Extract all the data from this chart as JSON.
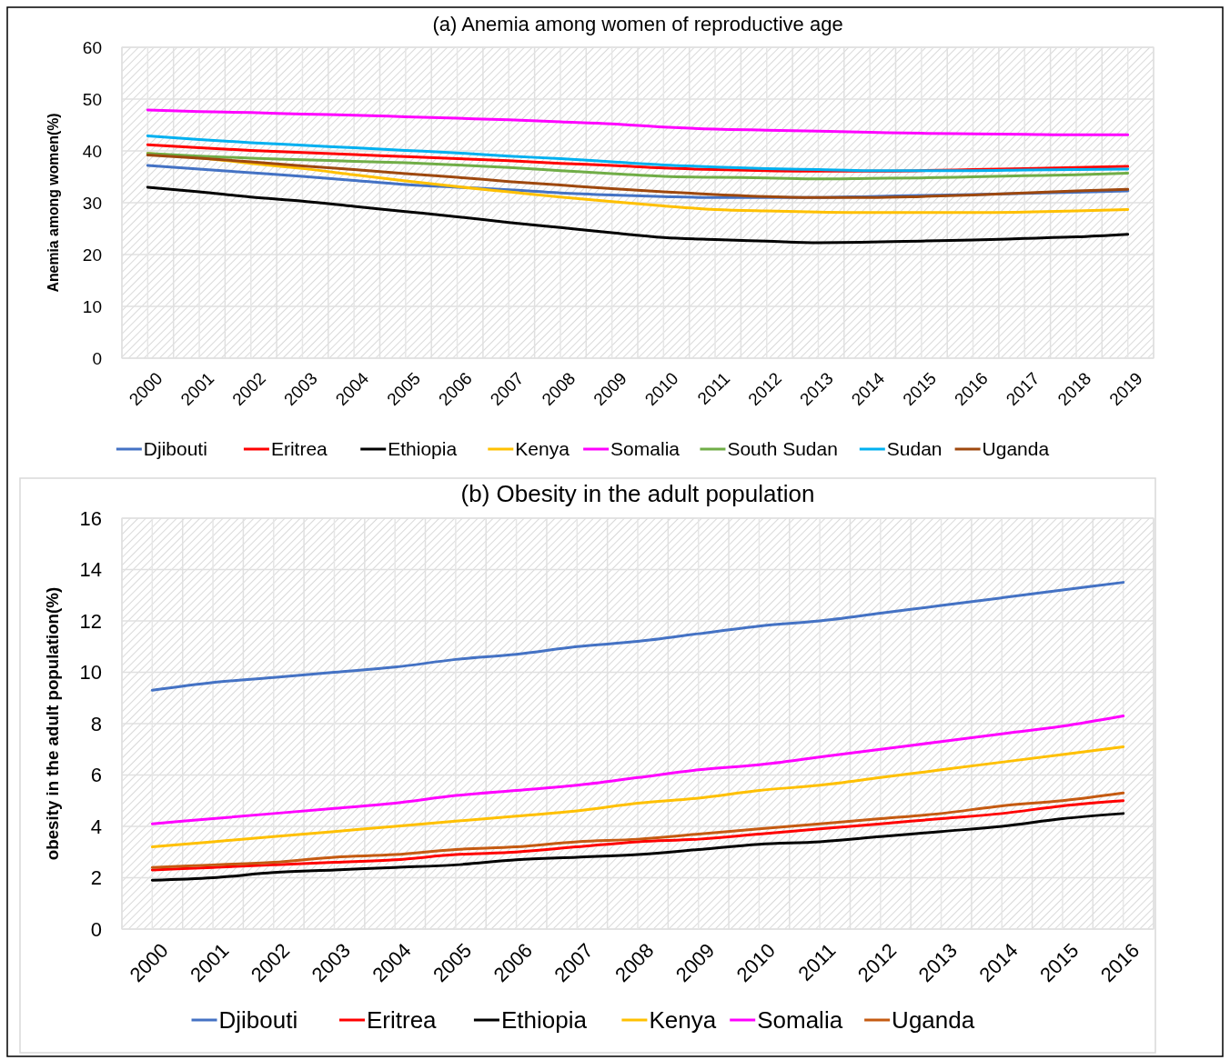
{
  "chart_data": [
    {
      "type": "line",
      "title": "(a)  Anemia among women of reproductive age",
      "ylabel": "Anemia among women(%)",
      "categories": [
        "2000",
        "2001",
        "2002",
        "2003",
        "2004",
        "2005",
        "2006",
        "2007",
        "2008",
        "2009",
        "2010",
        "2011",
        "2012",
        "2013",
        "2014",
        "2015",
        "2016",
        "2017",
        "2018",
        "2019"
      ],
      "ylim": [
        0,
        60
      ],
      "yticks": [
        0,
        10,
        20,
        30,
        40,
        50,
        60
      ],
      "grid": true,
      "legend": "bottom",
      "series": [
        {
          "name": "Djibouti",
          "color": "#4472c4",
          "values": [
            37.2,
            36.5,
            35.8,
            35.1,
            34.3,
            33.5,
            33,
            32.5,
            31.9,
            31.5,
            31.2,
            31,
            31,
            31,
            31.2,
            31.4,
            31.6,
            31.8,
            32,
            32.3
          ]
        },
        {
          "name": "Eritrea",
          "color": "#ff0000",
          "values": [
            41.2,
            40.6,
            40.1,
            39.7,
            39.3,
            38.9,
            38.5,
            38.1,
            37.6,
            37.2,
            36.7,
            36.4,
            36.2,
            36.1,
            36.1,
            36.2,
            36.4,
            36.6,
            36.8,
            37
          ]
        },
        {
          "name": "Ethiopia",
          "color": "#000000",
          "values": [
            33,
            32.1,
            31.1,
            30.3,
            29.3,
            28.3,
            27.3,
            26.2,
            25.2,
            24.2,
            23.3,
            22.9,
            22.6,
            22.3,
            22.4,
            22.6,
            22.8,
            23.1,
            23.4,
            23.9
          ]
        },
        {
          "name": "Kenya",
          "color": "#ffc000",
          "values": [
            39.5,
            38.7,
            37.6,
            36.6,
            35.4,
            34.2,
            33.1,
            32.1,
            31.1,
            30.2,
            29.4,
            28.7,
            28.4,
            28.2,
            28.1,
            28.1,
            28.1,
            28.2,
            28.4,
            28.7
          ]
        },
        {
          "name": "Somalia",
          "color": "#ff00ff",
          "values": [
            47.9,
            47.6,
            47.4,
            47.1,
            46.9,
            46.6,
            46.3,
            46,
            45.6,
            45.2,
            44.6,
            44.2,
            44,
            43.8,
            43.6,
            43.4,
            43.3,
            43.2,
            43.1,
            43.1
          ]
        },
        {
          "name": "South Sudan",
          "color": "#70ad47",
          "values": [
            39.5,
            39,
            38.6,
            38.3,
            38,
            37.7,
            37.3,
            36.8,
            36.2,
            35.6,
            35.1,
            34.9,
            34.8,
            34.6,
            34.7,
            34.8,
            35,
            35.2,
            35.4,
            35.7
          ]
        },
        {
          "name": "Sudan",
          "color": "#00b0f0",
          "values": [
            42.9,
            42.2,
            41.6,
            41.1,
            40.6,
            40.1,
            39.6,
            39,
            38.5,
            37.9,
            37.3,
            36.9,
            36.6,
            36.4,
            36.2,
            36.2,
            36.2,
            36.3,
            36.4,
            36.5
          ]
        },
        {
          "name": "Uganda",
          "color": "#9e480e",
          "values": [
            39.2,
            38.6,
            37.9,
            37.1,
            36.4,
            35.6,
            34.9,
            34.1,
            33.4,
            32.7,
            32.1,
            31.6,
            31.2,
            31,
            31,
            31.2,
            31.5,
            31.9,
            32.3,
            32.6
          ]
        }
      ]
    },
    {
      "type": "line",
      "title": "(b)  Obesity in the adult population",
      "ylabel": "obesity in the adult population(%)",
      "categories": [
        "2000",
        "2001",
        "2002",
        "2003",
        "2004",
        "2005",
        "2006",
        "2007",
        "2008",
        "2009",
        "2010",
        "2011",
        "2012",
        "2013",
        "2014",
        "2015",
        "2016"
      ],
      "ylim": [
        0,
        16
      ],
      "yticks": [
        0,
        2,
        4,
        6,
        8,
        10,
        12,
        14,
        16
      ],
      "grid": true,
      "legend": "bottom",
      "series": [
        {
          "name": "Djibouti",
          "color": "#4472c4",
          "values": [
            9.3,
            9.6,
            9.8,
            10,
            10.2,
            10.5,
            10.7,
            11,
            11.2,
            11.5,
            11.8,
            12,
            12.3,
            12.6,
            12.9,
            13.2,
            13.5
          ]
        },
        {
          "name": "Eritrea",
          "color": "#ff0000",
          "values": [
            2.3,
            2.4,
            2.5,
            2.6,
            2.7,
            2.9,
            3,
            3.2,
            3.4,
            3.5,
            3.7,
            3.9,
            4.1,
            4.3,
            4.5,
            4.8,
            5
          ]
        },
        {
          "name": "Ethiopia",
          "color": "#000000",
          "values": [
            1.9,
            2,
            2.2,
            2.3,
            2.4,
            2.5,
            2.7,
            2.8,
            2.9,
            3.1,
            3.3,
            3.4,
            3.6,
            3.8,
            4,
            4.3,
            4.5
          ]
        },
        {
          "name": "Kenya",
          "color": "#ffc000",
          "values": [
            3.2,
            3.4,
            3.6,
            3.8,
            4,
            4.2,
            4.4,
            4.6,
            4.9,
            5.1,
            5.4,
            5.6,
            5.9,
            6.2,
            6.5,
            6.8,
            7.1
          ]
        },
        {
          "name": "Somalia",
          "color": "#ff00ff",
          "values": [
            4.1,
            4.3,
            4.5,
            4.7,
            4.9,
            5.2,
            5.4,
            5.6,
            5.9,
            6.2,
            6.4,
            6.7,
            7,
            7.3,
            7.6,
            7.9,
            8.3
          ]
        },
        {
          "name": "Uganda",
          "color": "#c55a11",
          "values": [
            2.4,
            2.5,
            2.6,
            2.8,
            2.9,
            3.1,
            3.2,
            3.4,
            3.5,
            3.7,
            3.9,
            4.1,
            4.3,
            4.5,
            4.8,
            5,
            5.3
          ]
        }
      ]
    }
  ]
}
